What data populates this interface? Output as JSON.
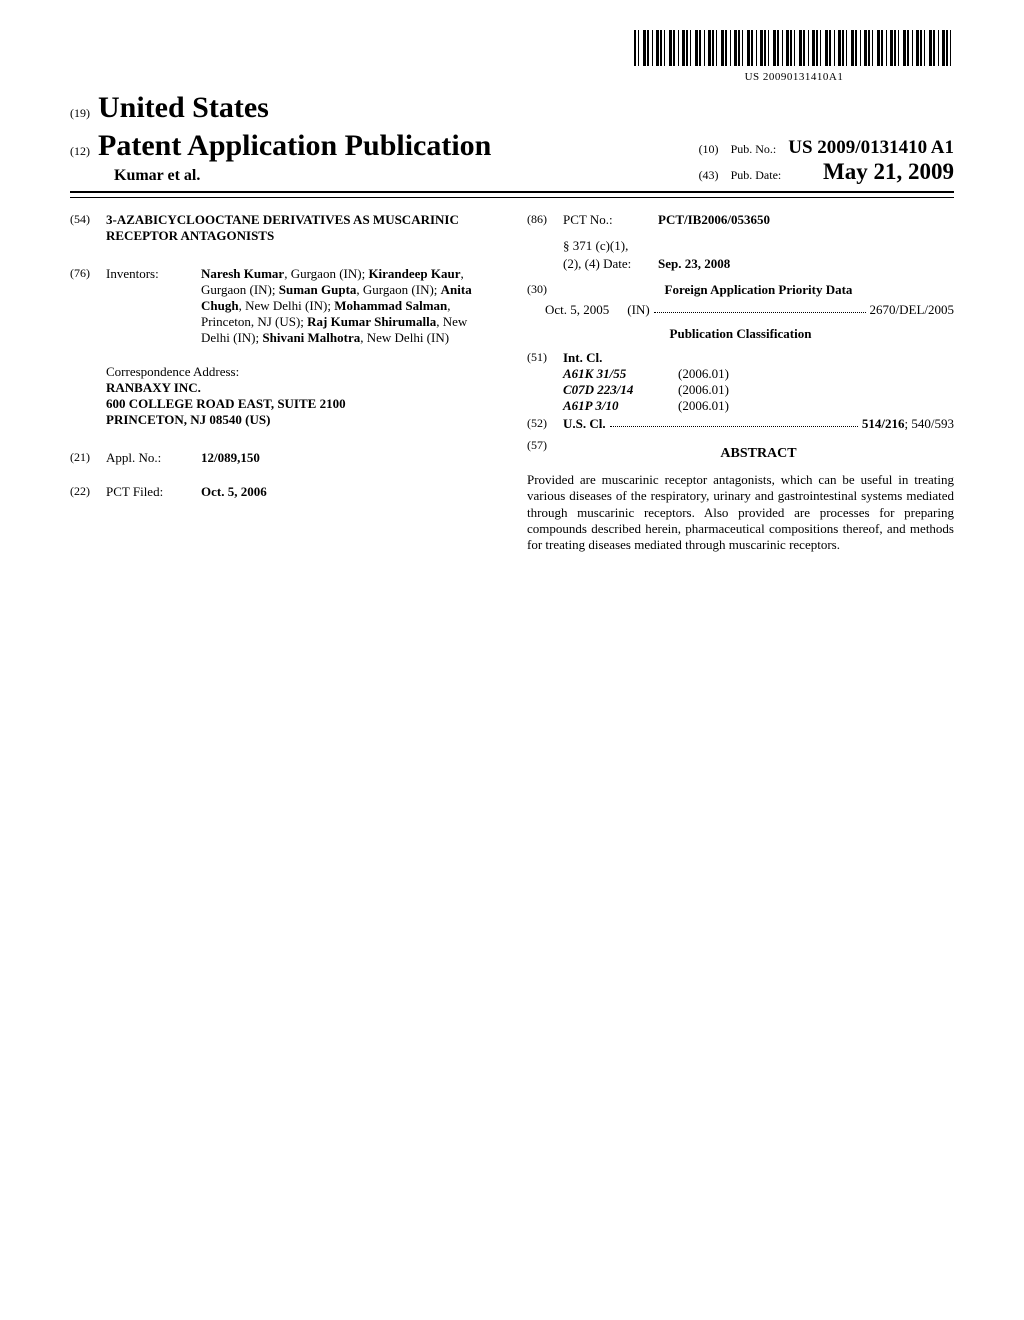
{
  "barcode_number": "US 20090131410A1",
  "header": {
    "country_tag": "(19)",
    "country": "United States",
    "pub_type_tag": "(12)",
    "pub_type": "Patent Application Publication",
    "author_line": "Kumar et al.",
    "pub_no_tag": "(10)",
    "pub_no_label": "Pub. No.:",
    "pub_no_value": "US 2009/0131410 A1",
    "pub_date_tag": "(43)",
    "pub_date_label": "Pub. Date:",
    "pub_date_value": "May 21, 2009"
  },
  "left": {
    "title_tag": "(54)",
    "title": "3-AZABICYCLOOCTANE DERIVATIVES AS MUSCARINIC RECEPTOR ANTAGONISTS",
    "inventors_tag": "(76)",
    "inventors_label": "Inventors:",
    "inventors_html_parts": [
      {
        "name": "Naresh Kumar",
        "loc": ", Gurgaon (IN); "
      },
      {
        "name": "Kirandeep Kaur",
        "loc": ", Gurgaon (IN); "
      },
      {
        "name": "Suman Gupta",
        "loc": ", Gurgaon (IN); "
      },
      {
        "name": "Anita Chugh",
        "loc": ", New Delhi (IN); "
      },
      {
        "name": "Mohammad Salman",
        "loc": ", Princeton, NJ (US); "
      },
      {
        "name": "Raj Kumar Shirumalla",
        "loc": ", New Delhi (IN); "
      },
      {
        "name": "Shivani Malhotra",
        "loc": ", New Delhi (IN)"
      }
    ],
    "corr_label": "Correspondence Address:",
    "corr_name": "RANBAXY INC.",
    "corr_addr1": "600 COLLEGE ROAD EAST, SUITE 2100",
    "corr_addr2": "PRINCETON, NJ 08540 (US)",
    "appl_tag": "(21)",
    "appl_label": "Appl. No.:",
    "appl_value": "12/089,150",
    "pct_filed_tag": "(22)",
    "pct_filed_label": "PCT Filed:",
    "pct_filed_value": "Oct. 5, 2006"
  },
  "right": {
    "pct_no_tag": "(86)",
    "pct_no_label": "PCT No.:",
    "pct_no_value": "PCT/IB2006/053650",
    "s371_label1": "§ 371 (c)(1),",
    "s371_label2": "(2), (4) Date:",
    "s371_value": "Sep. 23, 2008",
    "foreign_tag": "(30)",
    "foreign_heading": "Foreign Application Priority Data",
    "foreign_date": "Oct. 5, 2005",
    "foreign_country": "(IN)",
    "foreign_num": "2670/DEL/2005",
    "pub_class_heading": "Publication Classification",
    "intcl_tag": "(51)",
    "intcl_label": "Int. Cl.",
    "intcl_rows": [
      {
        "code": "A61K 31/55",
        "year": "(2006.01)"
      },
      {
        "code": "C07D 223/14",
        "year": "(2006.01)"
      },
      {
        "code": "A61P 3/10",
        "year": "(2006.01)"
      }
    ],
    "uscl_tag": "(52)",
    "uscl_label": "U.S. Cl.",
    "uscl_value_bold": "514/216",
    "uscl_value_rest": "; 540/593",
    "abstract_tag": "(57)",
    "abstract_label": "ABSTRACT",
    "abstract_text": "Provided are muscarinic receptor antagonists, which can be useful in treating various diseases of the respiratory, urinary and gastrointestinal systems mediated through muscarinic receptors. Also provided are processes for preparing compounds described herein, pharmaceutical compositions thereof, and methods for treating diseases mediated through muscarinic receptors."
  }
}
